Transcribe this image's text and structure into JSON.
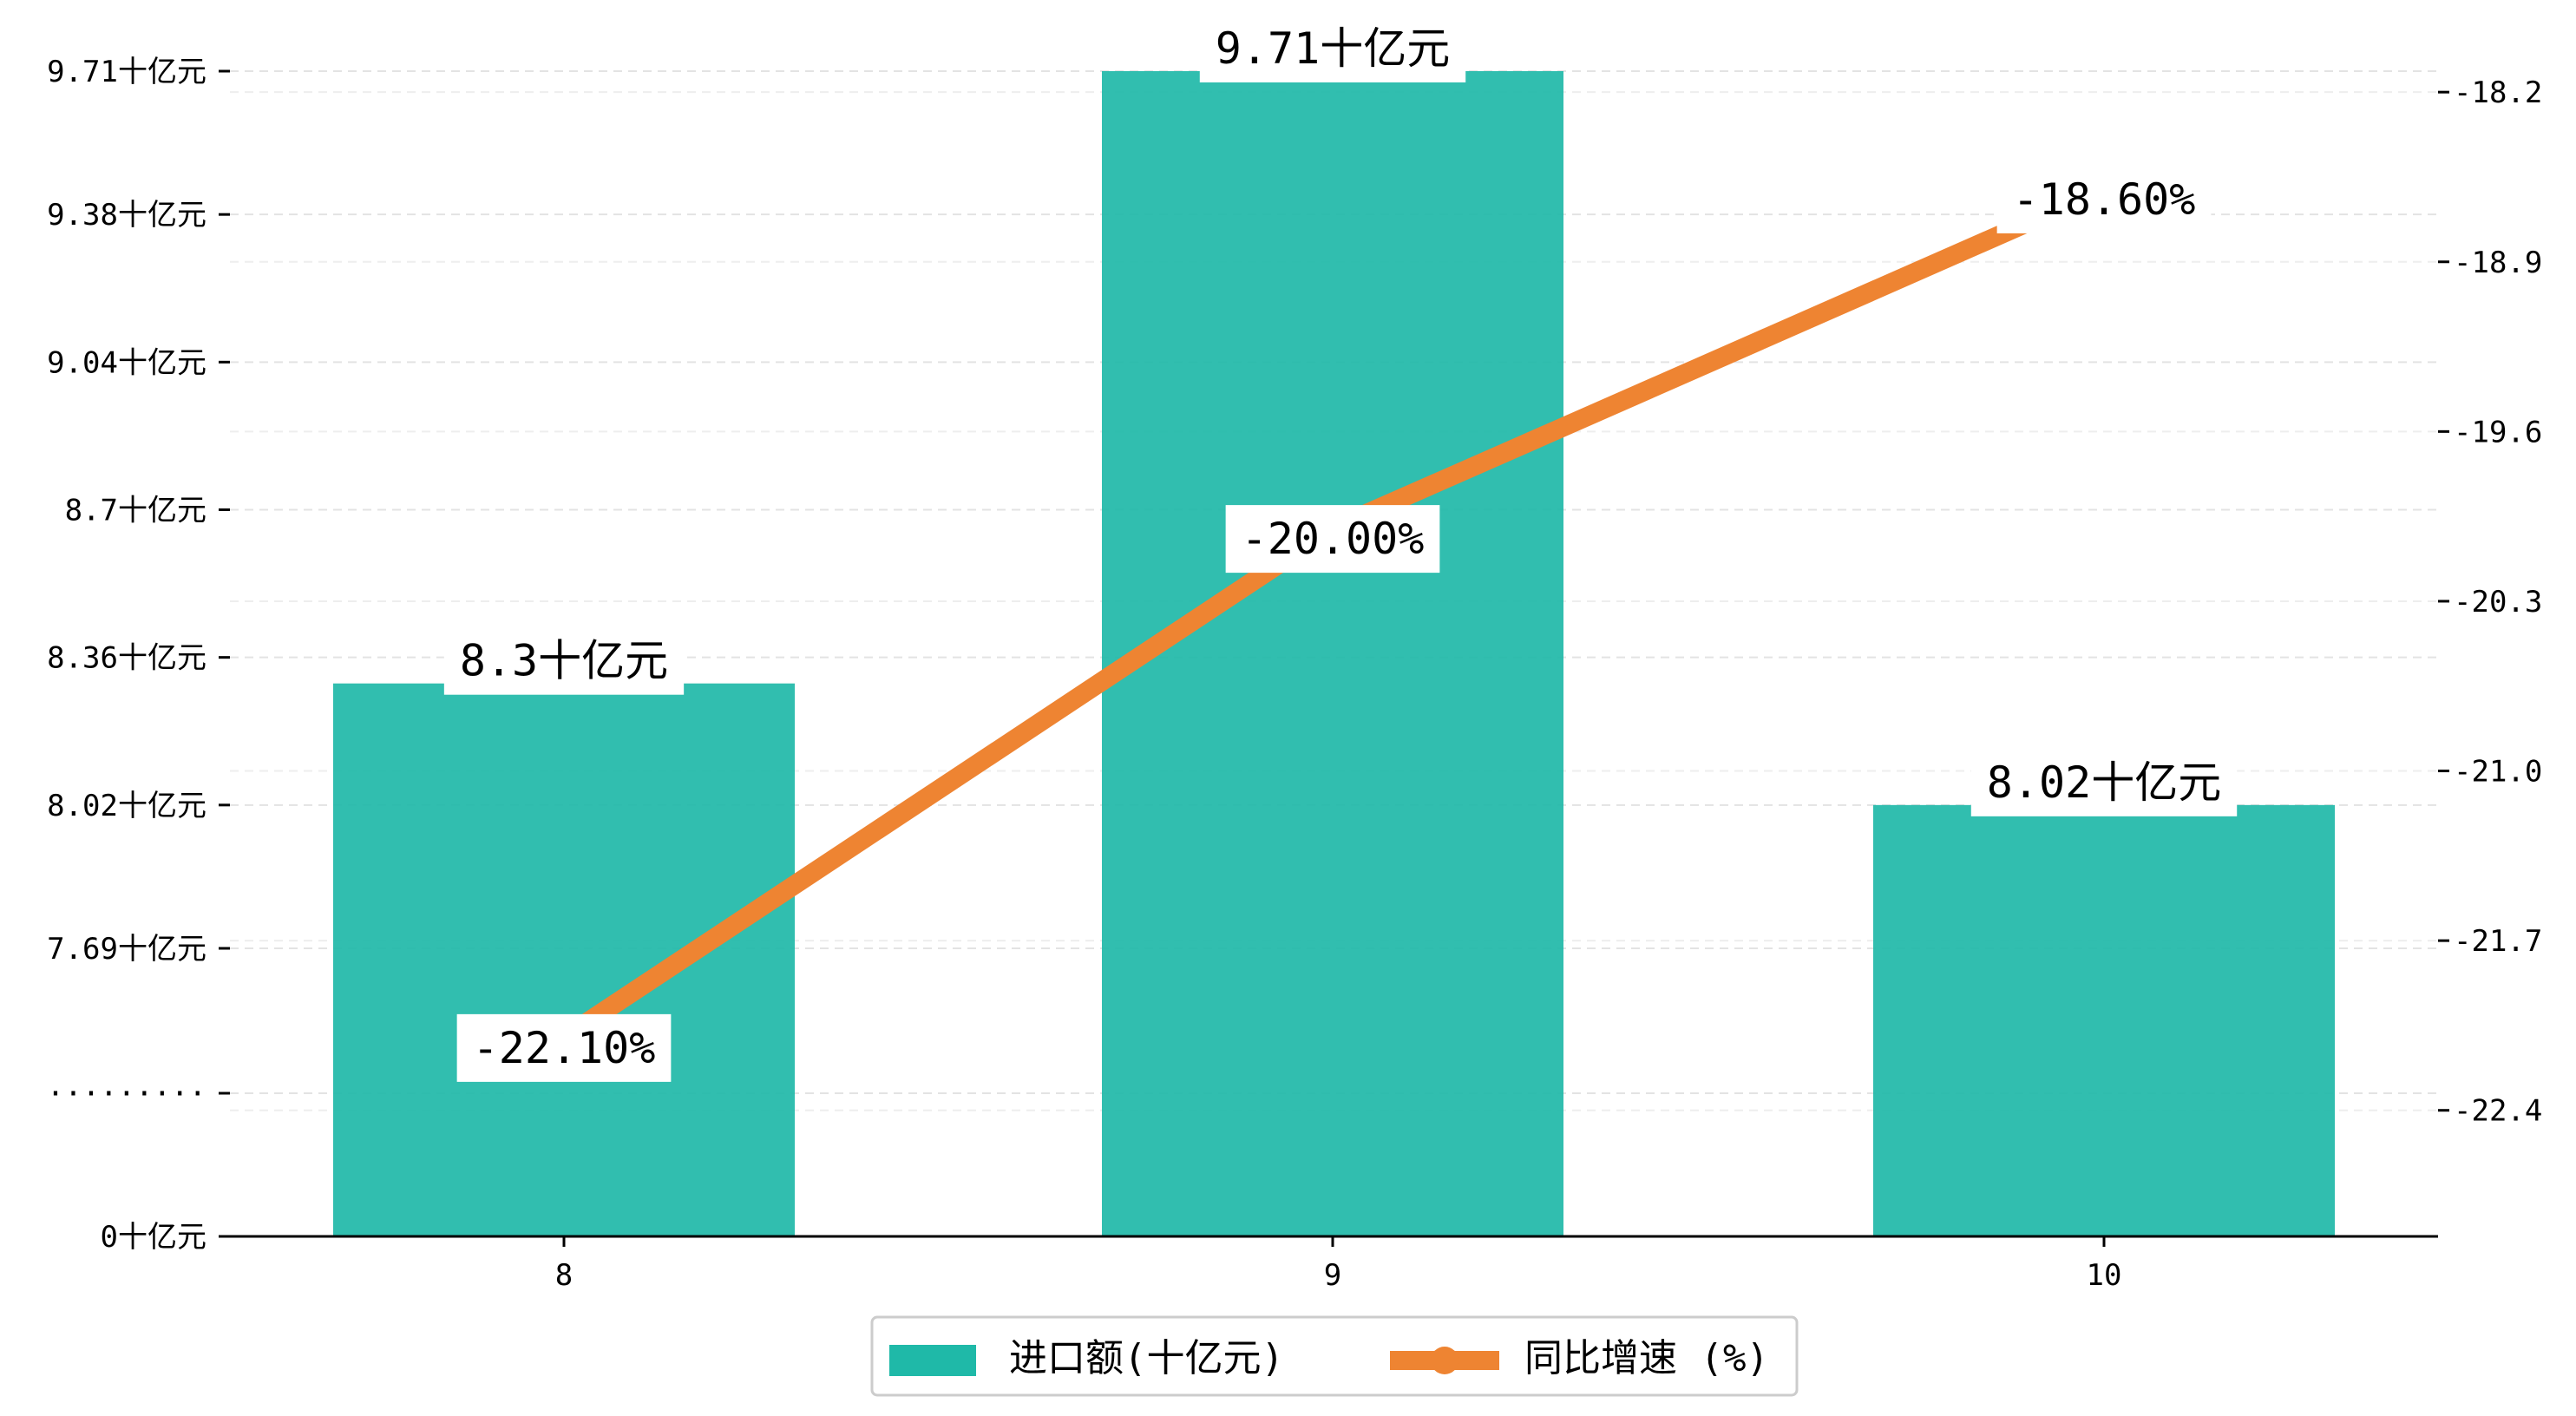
{
  "chart_data": {
    "type": "bar",
    "categories": [
      "8",
      "9",
      "10"
    ],
    "series": [
      {
        "name": "进口额(十亿元)",
        "kind": "bar",
        "axis": "left",
        "values": [
          8.3,
          9.71,
          8.02
        ],
        "value_labels": [
          "8.3十亿元",
          "9.71十亿元",
          "8.02十亿元"
        ],
        "color": "#1fb9a8"
      },
      {
        "name": "同比增速 (%)",
        "kind": "line",
        "axis": "right",
        "values": [
          -22.1,
          -20.0,
          -18.6
        ],
        "value_labels": [
          "-22.10%",
          "-20.00%",
          "-18.60%"
        ],
        "color": "#ee8432"
      }
    ],
    "left_axis": {
      "ticks": [
        {
          "value": 0,
          "label": "0十亿元"
        },
        {
          "value": null,
          "label": "·········"
        },
        {
          "value": 7.69,
          "label": "7.69十亿元"
        },
        {
          "value": 8.02,
          "label": "8.02十亿元"
        },
        {
          "value": 8.36,
          "label": "8.36十亿元"
        },
        {
          "value": 8.7,
          "label": "8.7十亿元"
        },
        {
          "value": 9.04,
          "label": "9.04十亿元"
        },
        {
          "value": 9.38,
          "label": "9.38十亿元"
        },
        {
          "value": 9.71,
          "label": "9.71十亿元"
        }
      ],
      "broken": true
    },
    "right_axis": {
      "ylim": [
        -22.92,
        -17.82
      ],
      "ticks": [
        {
          "value": -22.4,
          "label": "-22.4"
        },
        {
          "value": -21.7,
          "label": "-21.7"
        },
        {
          "value": -21.0,
          "label": "-21.0"
        },
        {
          "value": -20.3,
          "label": "-20.3"
        },
        {
          "value": -19.6,
          "label": "-19.6"
        },
        {
          "value": -18.9,
          "label": "-18.9"
        },
        {
          "value": -18.2,
          "label": "-18.2"
        }
      ]
    },
    "grid": true,
    "legend_position": "bottom-center",
    "title": "",
    "xlabel": "",
    "ylabel": ""
  }
}
